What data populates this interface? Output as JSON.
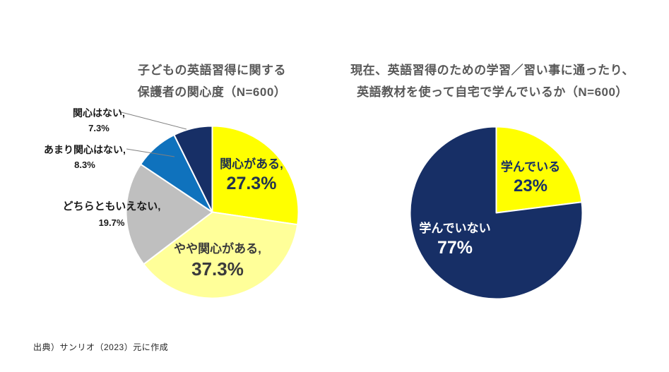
{
  "page": {
    "background": "#FFFFFF",
    "source_note": "出典）サンリオ（2023）元に作成"
  },
  "chart_data": [
    {
      "type": "pie",
      "title": "子どもの英語習得に関する保護者の関心度（N=600）",
      "title_lines": [
        "子どもの英語習得に関する",
        "保護者の関心度（N=600）"
      ],
      "sample_size": "N=600",
      "unit": "%",
      "start_angle": "12-o'clock",
      "direction": "clockwise",
      "title_color": "#595959",
      "slices": [
        {
          "label": "関心がある",
          "value": 27.3,
          "label_text": "関心がある,",
          "value_text": "27.3%",
          "color": "#FFFF00",
          "text_color": "#20324E"
        },
        {
          "label": "やや関心がある",
          "value": 37.3,
          "label_text": "やや関心がある,",
          "value_text": "37.3%",
          "color": "#FFFF99",
          "text_color": "#3B3B3B"
        },
        {
          "label": "どちらともいえない",
          "value": 19.7,
          "label_text": "どちらともいえない,",
          "value_text": "19.7%",
          "color": "#BFBFBF",
          "text_color": "#1A1A1A"
        },
        {
          "label": "あまり関心はない",
          "value": 8.3,
          "label_text": "あまり関心はない,",
          "value_text": "8.3%",
          "color": "#0F72BD",
          "text_color": "#1A1A1A"
        },
        {
          "label": "関心はない",
          "value": 7.3,
          "label_text": "関心はない,",
          "value_text": "7.3%",
          "color": "#172F66",
          "text_color": "#1A1A1A"
        }
      ],
      "leader_line_color": "#808080"
    },
    {
      "type": "pie",
      "title": "現在、英語習得のための学習／習い事に通ったり、英語教材を使って自宅で学んでいるか（N=600）",
      "title_lines": [
        "現在、英語習得のための学習／習い事に通ったり、",
        "英語教材を使って自宅で学んでいるか（N=600）"
      ],
      "sample_size": "N=600",
      "unit": "%",
      "start_angle": "12-o'clock",
      "direction": "clockwise",
      "title_color": "#595959",
      "slices": [
        {
          "label": "学んでいる",
          "value": 23,
          "label_text": "学んでいる",
          "value_text": "23%",
          "color": "#FFFF00",
          "text_color": "#172F66"
        },
        {
          "label": "学んでいない",
          "value": 77,
          "label_text": "学んでいない",
          "value_text": "77%",
          "color": "#172F66",
          "text_color": "#FFFFFF"
        }
      ]
    }
  ]
}
